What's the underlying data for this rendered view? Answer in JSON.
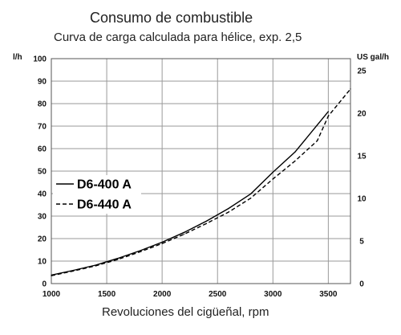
{
  "chart_data": {
    "type": "line",
    "title": "Consumo de combustible",
    "subtitle": "Curva de carga calculada para hélice, exp. 2,5",
    "xlabel": "Revoluciones del cigüeñal, rpm",
    "ylabel_left": "l/h",
    "ylabel_right": "US gal/h",
    "xlim": [
      1000,
      3700
    ],
    "ylim": [
      0,
      100
    ],
    "ylim_right": [
      0,
      26.42
    ],
    "x_ticks": [
      1000,
      1500,
      2000,
      2500,
      3000,
      3500
    ],
    "y_ticks": [
      0,
      10,
      20,
      30,
      40,
      50,
      60,
      70,
      80,
      90,
      100
    ],
    "y_ticks_right": [
      0,
      5,
      10,
      15,
      20,
      25
    ],
    "grid": true,
    "legend_position": "left-middle",
    "series": [
      {
        "name": "D6-400 A",
        "style": "solid",
        "color": "#000000",
        "x": [
          1000,
          1200,
          1400,
          1600,
          1800,
          2000,
          2200,
          2400,
          2600,
          2800,
          3000,
          3200,
          3400,
          3500
        ],
        "y": [
          3.8,
          5.9,
          8.2,
          11.2,
          14.6,
          18.4,
          22.8,
          27.8,
          33.4,
          39.9,
          49.5,
          58.5,
          70.5,
          76.5
        ]
      },
      {
        "name": "D6-440 A",
        "style": "dashed",
        "color": "#000000",
        "x": [
          1000,
          1200,
          1400,
          1600,
          1800,
          2000,
          2200,
          2400,
          2600,
          2800,
          3000,
          3200,
          3400,
          3500,
          3600,
          3700
        ],
        "y": [
          3.5,
          5.6,
          7.9,
          10.7,
          14.1,
          17.8,
          22.0,
          26.7,
          31.8,
          38.0,
          46.5,
          54.5,
          63.5,
          74.5,
          80.5,
          86.5
        ]
      }
    ]
  }
}
